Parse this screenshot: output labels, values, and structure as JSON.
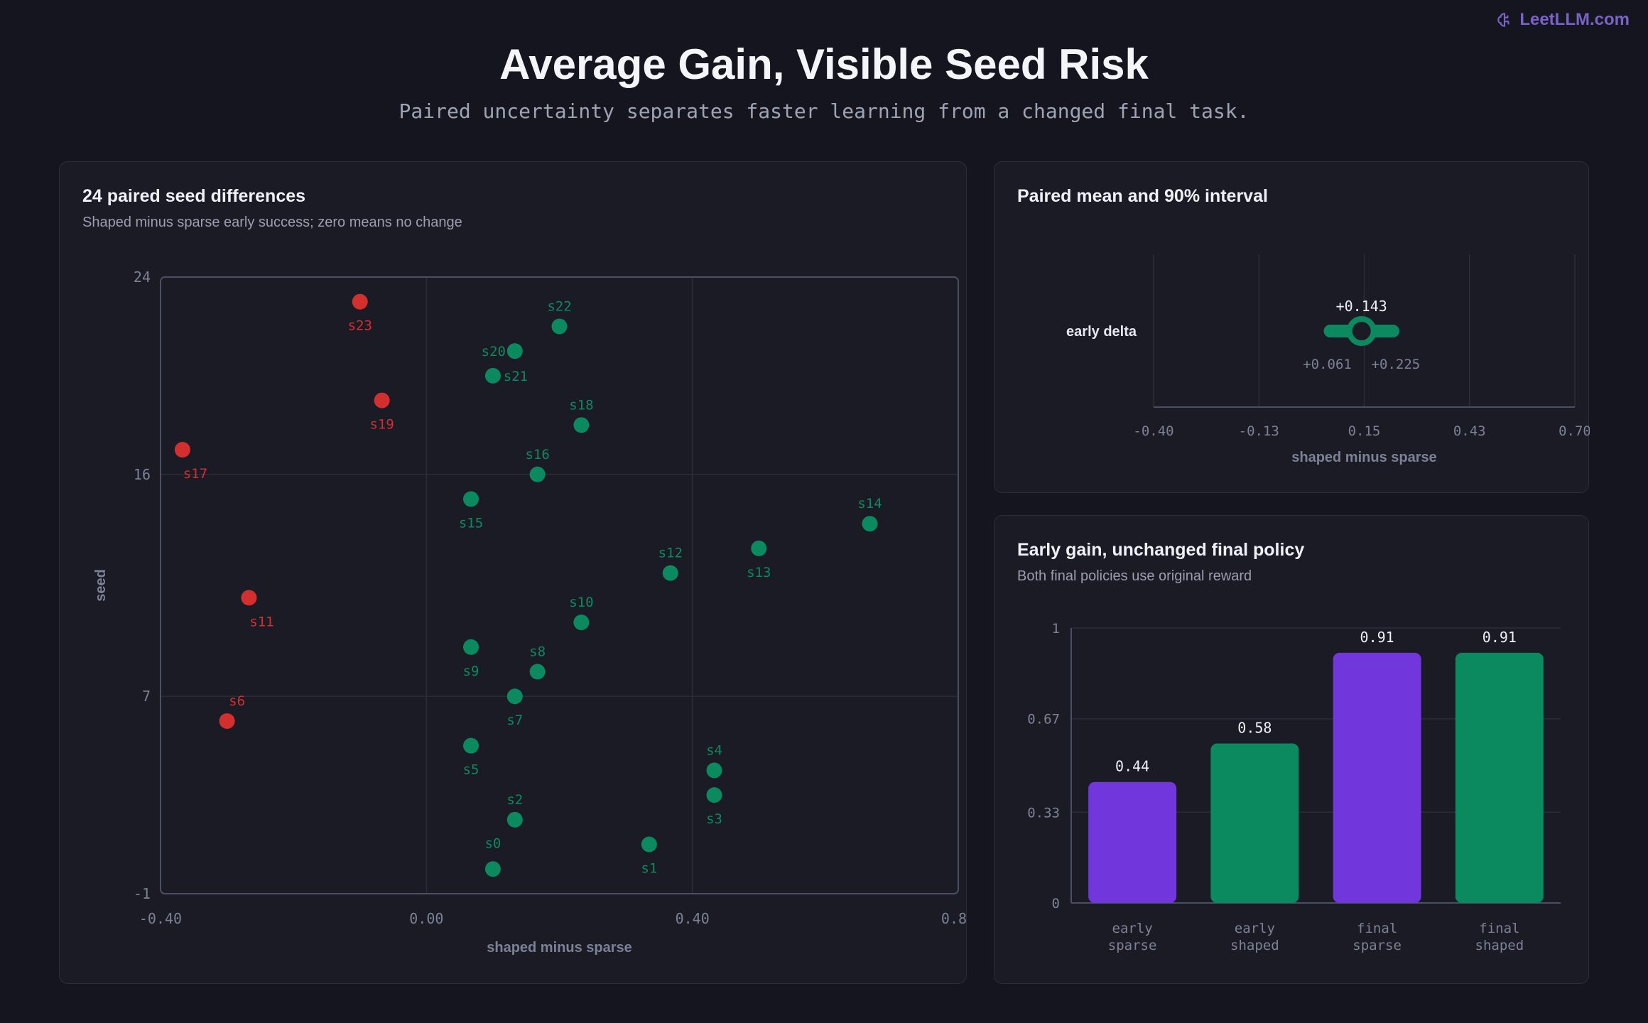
{
  "brand": {
    "name": "LeetLLM.com",
    "icon": "brain-icon"
  },
  "header": {
    "title": "Average Gain, Visible Seed Risk",
    "subtitle": "Paired uncertainty separates faster learning from a changed final task."
  },
  "colors": {
    "positive": "#0b8a5f",
    "negative": "#d32f2f",
    "sparse": "#7136dc",
    "shaped": "#0b8a5f"
  },
  "chart_data": [
    {
      "type": "scatter",
      "title": "24 paired seed differences",
      "subtitle": "Shaped minus sparse early success; zero means no change",
      "xlabel": "shaped minus sparse",
      "ylabel": "seed",
      "xlim": [
        -0.4,
        0.8
      ],
      "ylim": [
        -1,
        24
      ],
      "xticks": [
        "-0.40",
        "0.00",
        "0.40",
        "0.80"
      ],
      "yticks": [
        {
          "value": -1,
          "label": "-1"
        },
        {
          "value": 7,
          "label": "7"
        },
        {
          "value": 16,
          "label": "16"
        },
        {
          "value": 24,
          "label": "24"
        }
      ],
      "points": [
        {
          "label": "s0",
          "x": 0.1,
          "y": 0
        },
        {
          "label": "s1",
          "x": 0.335,
          "y": 1
        },
        {
          "label": "s2",
          "x": 0.133,
          "y": 2
        },
        {
          "label": "s3",
          "x": 0.433,
          "y": 3
        },
        {
          "label": "s4",
          "x": 0.433,
          "y": 4
        },
        {
          "label": "s5",
          "x": 0.067,
          "y": 5
        },
        {
          "label": "s6",
          "x": -0.3,
          "y": 6
        },
        {
          "label": "s7",
          "x": 0.133,
          "y": 7
        },
        {
          "label": "s8",
          "x": 0.167,
          "y": 8
        },
        {
          "label": "s9",
          "x": 0.067,
          "y": 9
        },
        {
          "label": "s10",
          "x": 0.233,
          "y": 10
        },
        {
          "label": "s11",
          "x": -0.267,
          "y": 11
        },
        {
          "label": "s12",
          "x": 0.367,
          "y": 12
        },
        {
          "label": "s13",
          "x": 0.5,
          "y": 13
        },
        {
          "label": "s14",
          "x": 0.667,
          "y": 14
        },
        {
          "label": "s15",
          "x": 0.067,
          "y": 15
        },
        {
          "label": "s16",
          "x": 0.167,
          "y": 16
        },
        {
          "label": "s17",
          "x": -0.367,
          "y": 17
        },
        {
          "label": "s18",
          "x": 0.233,
          "y": 18
        },
        {
          "label": "s19",
          "x": -0.067,
          "y": 19
        },
        {
          "label": "s20",
          "x": 0.133,
          "y": 21
        },
        {
          "label": "s21",
          "x": 0.1,
          "y": 20
        },
        {
          "label": "s22",
          "x": 0.2,
          "y": 22
        },
        {
          "label": "s23",
          "x": -0.1,
          "y": 23
        }
      ],
      "grid": true
    },
    {
      "type": "interval",
      "title": "Paired mean and 90% interval",
      "xlabel": "shaped minus sparse",
      "xlim": [
        -0.4,
        0.7
      ],
      "xticks": [
        "-0.40",
        "-0.13",
        "0.15",
        "0.43",
        "0.70"
      ],
      "row_label": "early delta",
      "mean": 0.143,
      "mean_label": "+0.143",
      "lower": 0.061,
      "lower_label": "+0.061",
      "upper": 0.225,
      "upper_label": "+0.225"
    },
    {
      "type": "bar",
      "title": "Early gain, unchanged final policy",
      "subtitle": "Both final policies use original reward",
      "ylim": [
        0,
        1
      ],
      "yticks": [
        {
          "value": 0,
          "label": "0"
        },
        {
          "value": 0.33,
          "label": "0.33"
        },
        {
          "value": 0.67,
          "label": "0.67"
        },
        {
          "value": 1,
          "label": "1"
        }
      ],
      "bars": [
        {
          "category": [
            "early",
            "sparse"
          ],
          "value": 0.44,
          "label": "0.44",
          "color": "#7136dc"
        },
        {
          "category": [
            "early",
            "shaped"
          ],
          "value": 0.58,
          "label": "0.58",
          "color": "#0b8a5f"
        },
        {
          "category": [
            "final",
            "sparse"
          ],
          "value": 0.91,
          "label": "0.91",
          "color": "#7136dc"
        },
        {
          "category": [
            "final",
            "shaped"
          ],
          "value": 0.91,
          "label": "0.91",
          "color": "#0b8a5f"
        }
      ],
      "grid": true
    }
  ]
}
